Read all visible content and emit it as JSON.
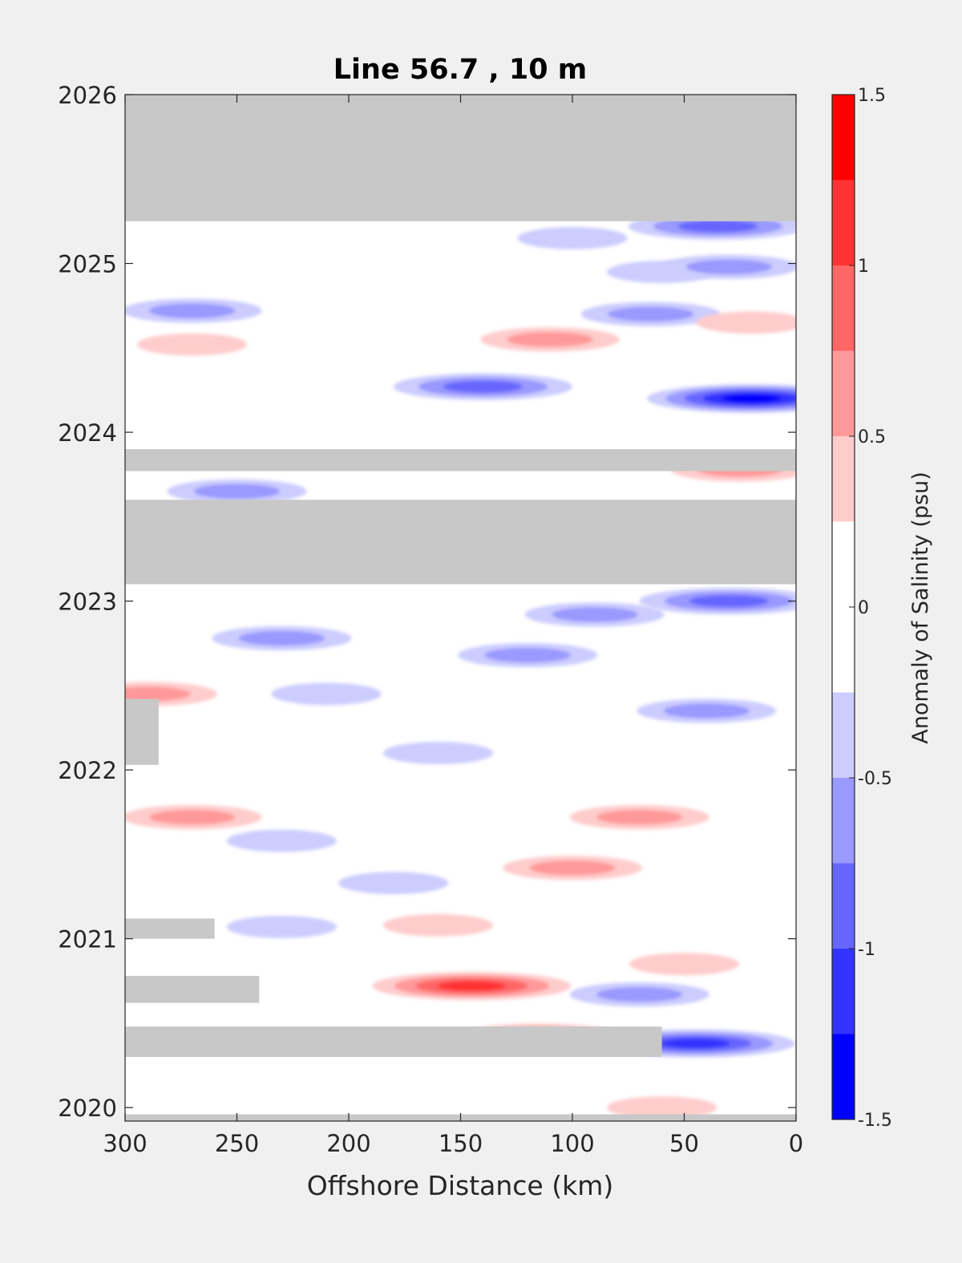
{
  "chart_data": {
    "type": "heatmap",
    "title": "Line 56.7 , 10 m",
    "xlabel": "Offshore Distance (km)",
    "ylabel": "",
    "x_ticks": [
      "300",
      "250",
      "200",
      "150",
      "100",
      "50",
      "0"
    ],
    "y_ticks": [
      "2020",
      "2021",
      "2022",
      "2023",
      "2024",
      "2025",
      "2026"
    ],
    "xlim": [
      300,
      0
    ],
    "ylim": [
      2019.92,
      2026
    ],
    "colorbar": {
      "label": "Anomaly of Salinity (psu)",
      "ticks": [
        "1.5",
        "1",
        "0.5",
        "0",
        "-0.5",
        "-1",
        "-1.5"
      ],
      "range": [
        -1.5,
        1.5
      ],
      "levels": [
        -1.5,
        -1.25,
        -1,
        -0.75,
        -0.5,
        -0.25,
        0.25,
        0.5,
        0.75,
        1,
        1.25,
        1.5
      ],
      "colors": [
        "#0000ff",
        "#3333ff",
        "#6666ff",
        "#9999ff",
        "#ccccff",
        "#ffffff",
        "#ffcccc",
        "#ff9999",
        "#ff6666",
        "#ff3333",
        "#ff0000"
      ]
    },
    "no_data_color": "#c8c8c8",
    "no_data_periods": [
      {
        "x_from": 300,
        "x_to": 0,
        "t_from": 2025.25,
        "t_to": 2026.0
      },
      {
        "x_from": 300,
        "x_to": 0,
        "t_from": 2023.1,
        "t_to": 2023.6
      },
      {
        "x_from": 300,
        "x_to": 0,
        "t_from": 2023.77,
        "t_to": 2023.9
      },
      {
        "x_from": 300,
        "x_to": 0,
        "t_from": 2019.92,
        "t_to": 2019.96
      },
      {
        "x_from": 300,
        "x_to": 60,
        "t_from": 2020.3,
        "t_to": 2020.48
      },
      {
        "x_from": 300,
        "x_to": 240,
        "t_from": 2020.62,
        "t_to": 2020.78
      },
      {
        "x_from": 300,
        "x_to": 260,
        "t_from": 2021.0,
        "t_to": 2021.12
      },
      {
        "x_from": 300,
        "x_to": 285,
        "t_from": 2022.03,
        "t_to": 2022.42
      }
    ],
    "anomaly_features": [
      {
        "x": 35,
        "t": 2025.22,
        "value": -1.0
      },
      {
        "x": 100,
        "t": 2025.15,
        "value": -0.3
      },
      {
        "x": 60,
        "t": 2024.95,
        "value": -0.3
      },
      {
        "x": 30,
        "t": 2024.98,
        "value": -0.6
      },
      {
        "x": 270,
        "t": 2024.72,
        "value": -0.6
      },
      {
        "x": 65,
        "t": 2024.7,
        "value": -0.6
      },
      {
        "x": 110,
        "t": 2024.55,
        "value": 0.6
      },
      {
        "x": 270,
        "t": 2024.52,
        "value": 0.3
      },
      {
        "x": 20,
        "t": 2024.65,
        "value": 0.3
      },
      {
        "x": 140,
        "t": 2024.27,
        "value": -1.0
      },
      {
        "x": 20,
        "t": 2024.2,
        "value": -1.3
      },
      {
        "x": 25,
        "t": 2023.78,
        "value": 0.6
      },
      {
        "x": 250,
        "t": 2023.65,
        "value": -0.6
      },
      {
        "x": 30,
        "t": 2023.0,
        "value": -1.0
      },
      {
        "x": 90,
        "t": 2022.92,
        "value": -0.6
      },
      {
        "x": 230,
        "t": 2022.78,
        "value": -0.6
      },
      {
        "x": 120,
        "t": 2022.68,
        "value": -0.6
      },
      {
        "x": 290,
        "t": 2022.45,
        "value": 0.6
      },
      {
        "x": 210,
        "t": 2022.45,
        "value": -0.3
      },
      {
        "x": 40,
        "t": 2022.35,
        "value": -0.6
      },
      {
        "x": 160,
        "t": 2022.1,
        "value": -0.3
      },
      {
        "x": 270,
        "t": 2021.72,
        "value": 0.6
      },
      {
        "x": 70,
        "t": 2021.72,
        "value": 0.6
      },
      {
        "x": 230,
        "t": 2021.58,
        "value": -0.3
      },
      {
        "x": 100,
        "t": 2021.42,
        "value": 0.6
      },
      {
        "x": 180,
        "t": 2021.33,
        "value": -0.3
      },
      {
        "x": 160,
        "t": 2021.08,
        "value": 0.3
      },
      {
        "x": 230,
        "t": 2021.07,
        "value": -0.3
      },
      {
        "x": 50,
        "t": 2020.85,
        "value": 0.3
      },
      {
        "x": 145,
        "t": 2020.72,
        "value": 1.2
      },
      {
        "x": 70,
        "t": 2020.67,
        "value": -0.6
      },
      {
        "x": 115,
        "t": 2020.42,
        "value": 0.9
      },
      {
        "x": 45,
        "t": 2020.38,
        "value": -1.2
      },
      {
        "x": 60,
        "t": 2020.0,
        "value": 0.3
      }
    ]
  }
}
